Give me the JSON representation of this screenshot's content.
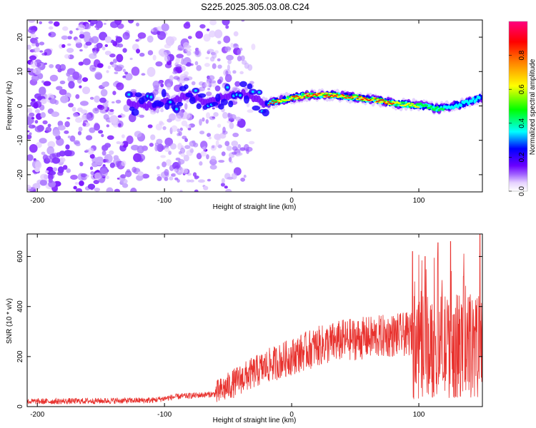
{
  "title": "S225.2025.305.03.08.C24",
  "colors": {
    "snr_line": "#e8322e",
    "axis": "#000000"
  },
  "chart_data": [
    {
      "type": "heatmap",
      "xlabel": "Height of straight line (km)",
      "ylabel": "Frequency (Hz)",
      "xlim": [
        -208,
        150
      ],
      "ylim": [
        -25,
        25
      ],
      "xticks": [
        -200,
        -100,
        0,
        100
      ],
      "yticks": [
        -20,
        -10,
        0,
        10,
        20
      ],
      "colorbar": {
        "label": "Normalized spectral amplitude",
        "range": [
          0,
          1
        ],
        "ticks": [
          0.0,
          0.2,
          0.4,
          0.6,
          0.8
        ]
      },
      "ridge": [
        {
          "x": -125,
          "f": 0.5
        },
        {
          "x": -110,
          "f": 0.0
        },
        {
          "x": -95,
          "f": 1.5
        },
        {
          "x": -80,
          "f": 3.0
        },
        {
          "x": -65,
          "f": 1.0
        },
        {
          "x": -50,
          "f": 3.0
        },
        {
          "x": -35,
          "f": 3.5
        },
        {
          "x": -20,
          "f": 0.5
        },
        {
          "x": -5,
          "f": 2.0
        },
        {
          "x": 10,
          "f": 3.0
        },
        {
          "x": 30,
          "f": 3.2
        },
        {
          "x": 50,
          "f": 2.5
        },
        {
          "x": 70,
          "f": 1.5
        },
        {
          "x": 85,
          "f": 0.5
        },
        {
          "x": 100,
          "f": 0.2
        },
        {
          "x": 115,
          "f": -0.8
        },
        {
          "x": 130,
          "f": 0.2
        },
        {
          "x": 150,
          "f": 2.5
        }
      ]
    },
    {
      "type": "line",
      "xlabel": "Height of straight line (km)",
      "ylabel": "SNR (10 * v/v)",
      "xlim": [
        -208,
        150
      ],
      "ylim": [
        0,
        690
      ],
      "xticks": [
        -200,
        -100,
        0,
        100
      ],
      "yticks": [
        0,
        200,
        400,
        600
      ],
      "trend": [
        {
          "x": -208,
          "y": 20
        },
        {
          "x": -110,
          "y": 25
        },
        {
          "x": -90,
          "y": 40
        },
        {
          "x": -60,
          "y": 50
        },
        {
          "x": -40,
          "y": 110
        },
        {
          "x": -20,
          "y": 160
        },
        {
          "x": 0,
          "y": 200
        },
        {
          "x": 20,
          "y": 240
        },
        {
          "x": 40,
          "y": 265
        },
        {
          "x": 60,
          "y": 275
        },
        {
          "x": 80,
          "y": 285
        },
        {
          "x": 95,
          "y": 290
        },
        {
          "x": 150,
          "y": 300
        }
      ],
      "peaks": [
        {
          "x": 95,
          "y": 620
        },
        {
          "x": 105,
          "y": 600
        },
        {
          "x": 115,
          "y": 655
        },
        {
          "x": 125,
          "y": 660
        },
        {
          "x": 135,
          "y": 520
        },
        {
          "x": 148,
          "y": 690
        }
      ]
    }
  ]
}
